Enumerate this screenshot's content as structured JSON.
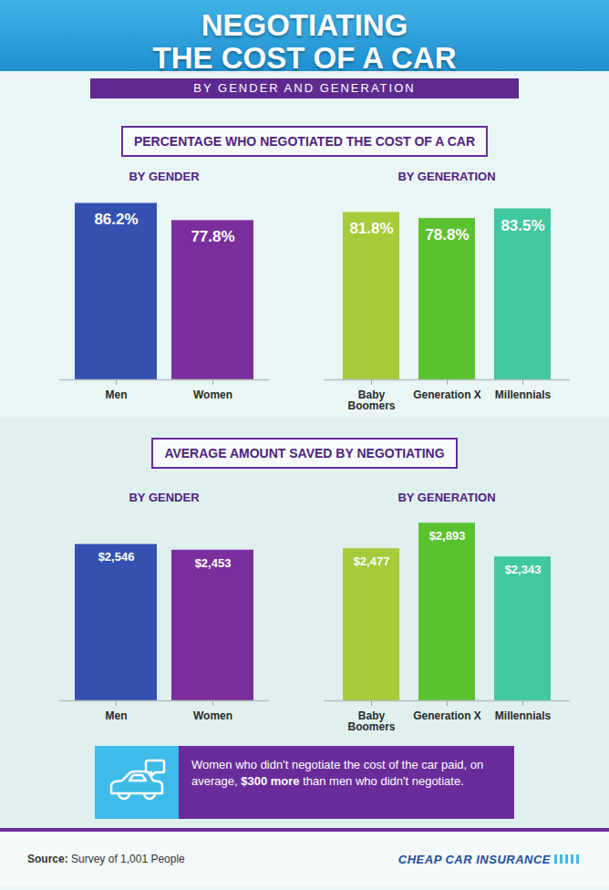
{
  "header": {
    "title_lines": [
      "NEGOTIATING",
      "THE COST OF A CAR"
    ],
    "subtitle": "BY GENDER AND GENERATION"
  },
  "section_headings": [
    "PERCENTAGE WHO NEGOTIATED THE COST OF A CAR",
    "AVERAGE AMOUNT SAVED BY NEGOTIATING"
  ],
  "chart_data": [
    {
      "type": "bar",
      "title": "BY GENDER",
      "categories": [
        "Men",
        "Women"
      ],
      "values": [
        86.2,
        77.8
      ],
      "value_labels": [
        "86.2%",
        "77.8%"
      ],
      "colors": [
        "#3451b2",
        "#7a2f9c"
      ],
      "ylim": [
        0,
        90
      ],
      "data_labels": true,
      "tick_labels": "x"
    },
    {
      "type": "bar",
      "title": "BY GENERATION",
      "categories": [
        "Baby Boomers",
        "Generation X",
        "Millennials"
      ],
      "values": [
        81.8,
        78.8,
        83.5
      ],
      "value_labels": [
        "81.8%",
        "78.8%",
        "83.5%"
      ],
      "colors": [
        "#a4cb3a",
        "#5bc22f",
        "#40c8a0"
      ],
      "ylim": [
        0,
        90
      ],
      "data_labels": true,
      "tick_labels": "x"
    },
    {
      "type": "bar",
      "title": "BY GENDER",
      "categories": [
        "Men",
        "Women"
      ],
      "values": [
        2546,
        2453
      ],
      "value_labels": [
        "$2,546",
        "$2,453"
      ],
      "colors": [
        "#3451b2",
        "#7a2f9c"
      ],
      "ylim": [
        0,
        3000
      ],
      "data_labels": true,
      "tick_labels": "x"
    },
    {
      "type": "bar",
      "title": "BY GENERATION",
      "categories": [
        "Baby Boomers",
        "Generation X",
        "Millennials"
      ],
      "values": [
        2477,
        2893,
        2343
      ],
      "value_labels": [
        "$2,477",
        "$2,893",
        "$2,343"
      ],
      "colors": [
        "#a4cb3a",
        "#5bc22f",
        "#40c8a0"
      ],
      "ylim": [
        0,
        3000
      ],
      "data_labels": true,
      "tick_labels": "x"
    }
  ],
  "note": {
    "text_before": "Women who didn't negotiate the cost of the car paid, on average, ",
    "highlight": "$300 more",
    "text_after": " than men who didn't negotiate."
  },
  "source": {
    "label": "Source:",
    "text": "Survey of 1,001 People"
  },
  "brand": "CHEAP CAR INSURANCE"
}
